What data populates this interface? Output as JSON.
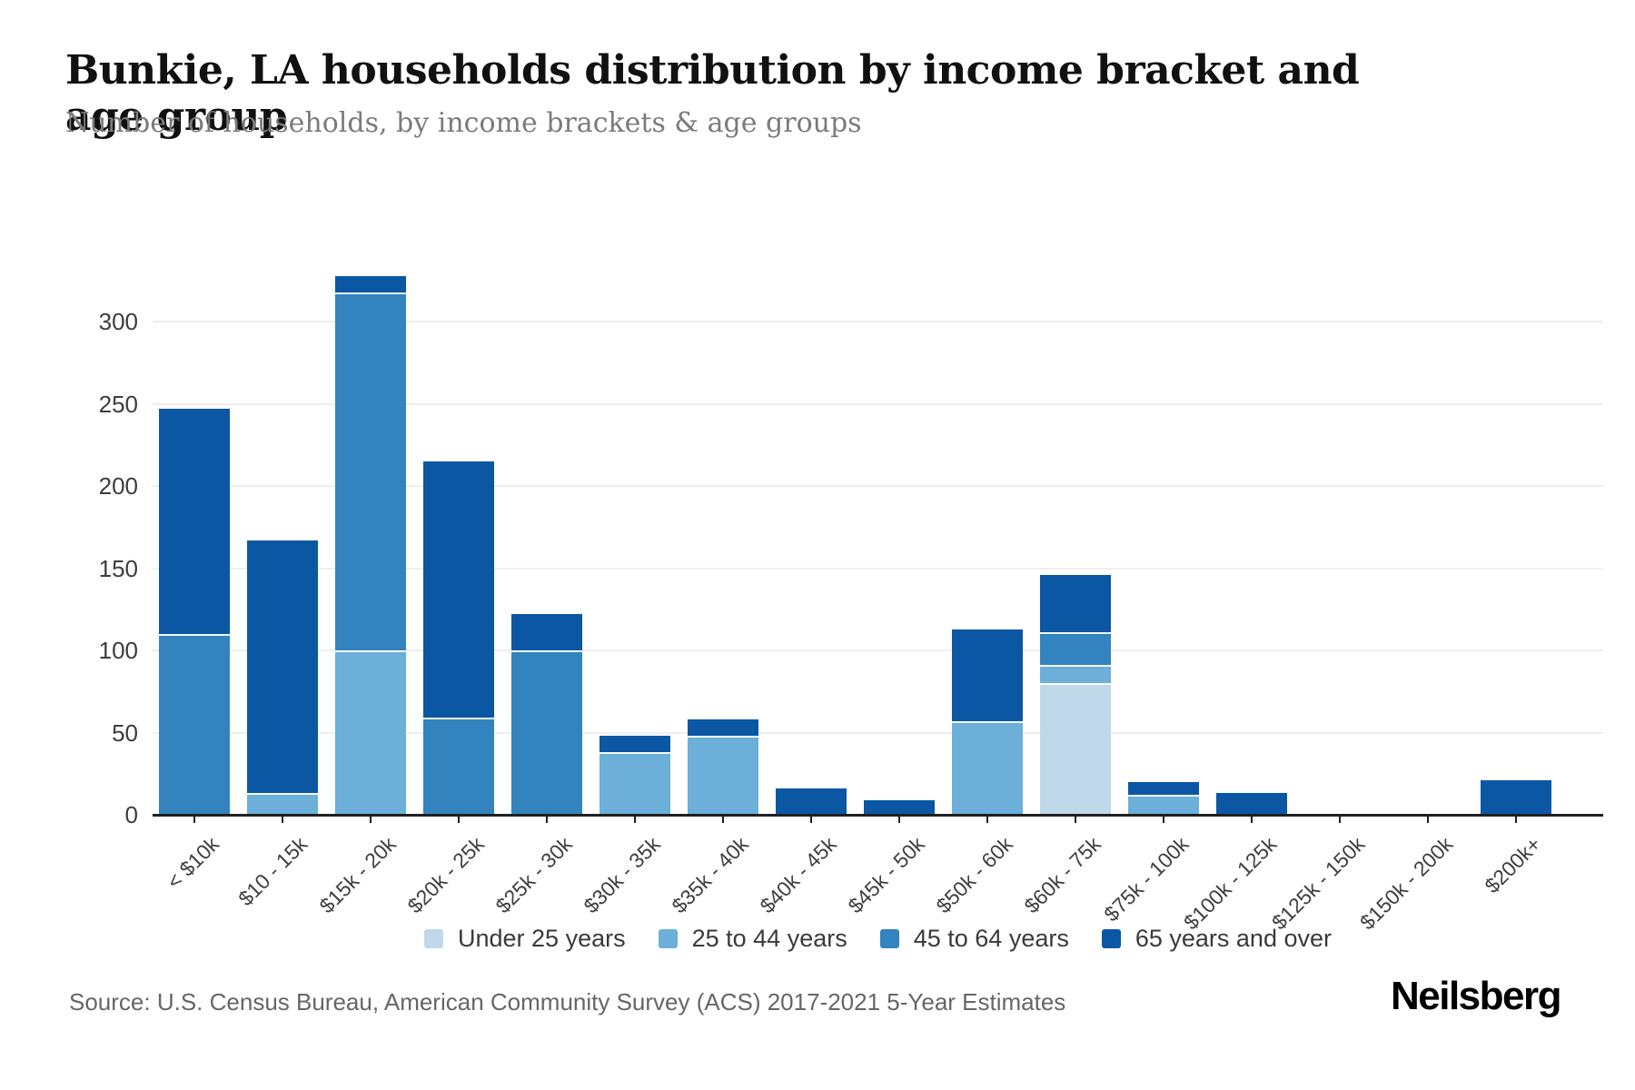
{
  "chart": {
    "title": "Bunkie, LA households distribution by income bracket and age group",
    "subtitle": "Number of households, by income brackets & age groups",
    "source": "Source: U.S. Census Bureau, American Community Survey (ACS) 2017-2021 5-Year Estimates"
  },
  "branding": {
    "logo_text": "Neilsberg"
  },
  "chart_data": {
    "type": "bar",
    "stacked": true,
    "title": "Bunkie, LA households distribution by income bracket and age group",
    "subtitle": "Number of households, by income brackets & age groups",
    "xlabel": "",
    "ylabel": "Number of households",
    "ylim": [
      0,
      330
    ],
    "yticks": [
      0,
      50,
      100,
      150,
      200,
      250,
      300
    ],
    "grid": true,
    "legend_position": "bottom",
    "categories": [
      "< $10k",
      "$10 - 15k",
      "$15k - 20k",
      "$20k - 25k",
      "$25k - 30k",
      "$30k - 35k",
      "$35k - 40k",
      "$40k - 45k",
      "$45k - 50k",
      "$50k - 60k",
      "$60k - 75k",
      "$75k - 100k",
      "$100k - 125k",
      "$125k - 150k",
      "$150k - 200k",
      "$200k+"
    ],
    "series": [
      {
        "name": "Under 25 years",
        "color": "#bfd8ea",
        "values": [
          0,
          0,
          0,
          0,
          0,
          0,
          0,
          0,
          0,
          0,
          80,
          0,
          0,
          0,
          0,
          0
        ]
      },
      {
        "name": "25 to 44 years",
        "color": "#6cafd8",
        "values": [
          0,
          13,
          100,
          0,
          0,
          38,
          48,
          0,
          0,
          57,
          11,
          12,
          0,
          0,
          0,
          0
        ]
      },
      {
        "name": "45 to 64 years",
        "color": "#3383bf",
        "values": [
          110,
          0,
          218,
          59,
          100,
          0,
          0,
          0,
          0,
          0,
          20,
          0,
          0,
          0,
          0,
          0
        ]
      },
      {
        "name": "65 years and over",
        "color": "#0b57a4",
        "values": [
          137,
          154,
          10,
          156,
          22,
          10,
          10,
          16,
          9,
          56,
          35,
          8,
          13,
          0,
          0,
          21
        ]
      }
    ],
    "totals": [
      247,
      167,
      328,
      215,
      122,
      48,
      58,
      16,
      9,
      113,
      146,
      20,
      13,
      0,
      0,
      21
    ]
  }
}
